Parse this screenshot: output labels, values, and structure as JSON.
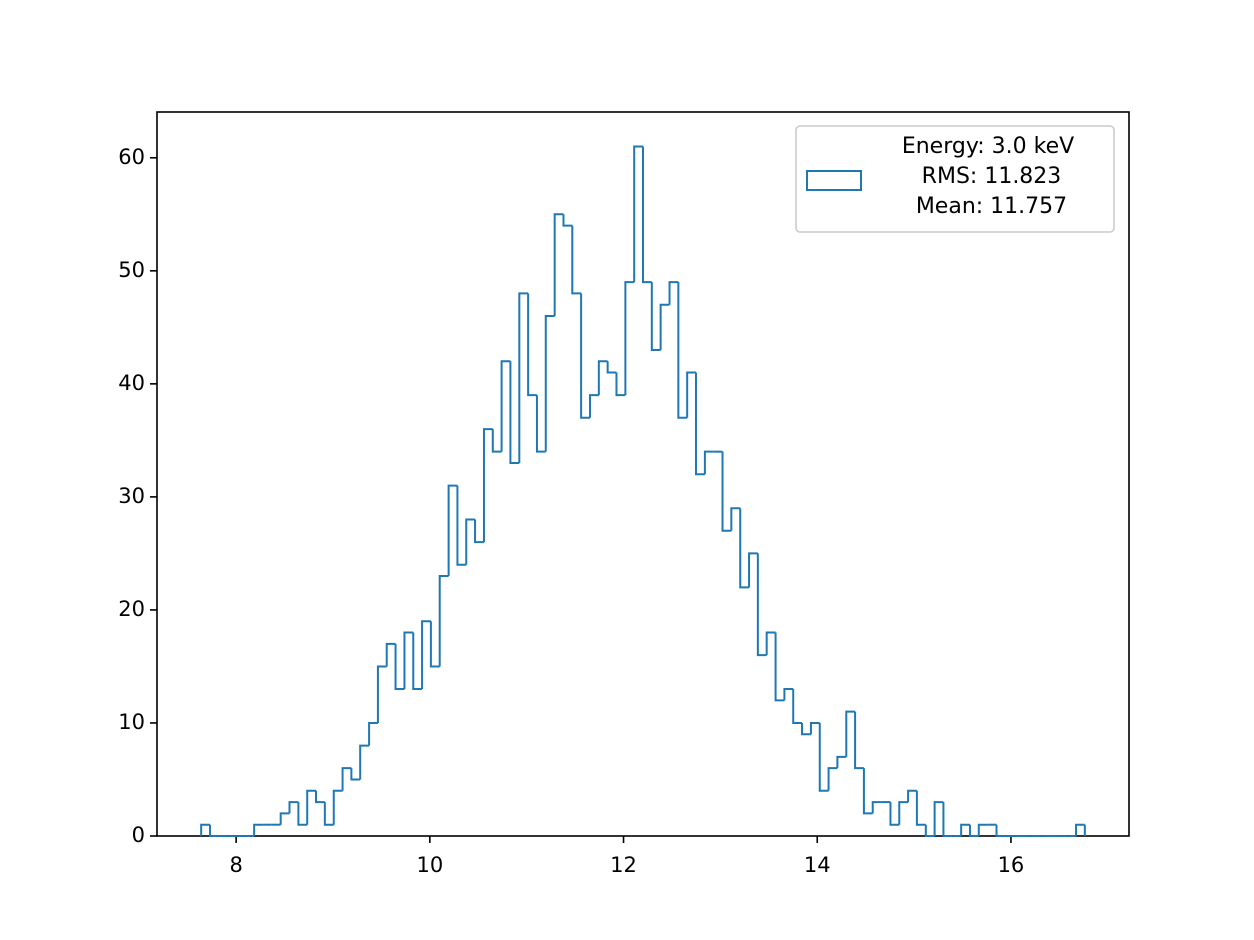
{
  "chart_data": {
    "type": "histogram",
    "histtype": "step",
    "bins": [
      7.639,
      7.73,
      7.821,
      7.913,
      8.004,
      8.095,
      8.186,
      8.278,
      8.369,
      8.46,
      8.551,
      8.643,
      8.734,
      8.825,
      8.916,
      9.008,
      9.099,
      9.19,
      9.281,
      9.373,
      9.464,
      9.555,
      9.646,
      9.738,
      9.829,
      9.92,
      10.011,
      10.102,
      10.194,
      10.285,
      10.376,
      10.467,
      10.559,
      10.65,
      10.741,
      10.832,
      10.924,
      11.015,
      11.106,
      11.197,
      11.289,
      11.38,
      11.471,
      11.562,
      11.654,
      11.745,
      11.836,
      11.927,
      12.019,
      12.11,
      12.201,
      12.292,
      12.383,
      12.475,
      12.566,
      12.657,
      12.748,
      12.84,
      12.931,
      13.022,
      13.113,
      13.205,
      13.296,
      13.387,
      13.478,
      13.57,
      13.661,
      13.752,
      13.843,
      13.935,
      14.026,
      14.117,
      14.208,
      14.3,
      14.391,
      14.482,
      14.573,
      14.665,
      14.756,
      14.847,
      14.938,
      15.029,
      15.121,
      15.212,
      15.303,
      15.394,
      15.486,
      15.577,
      15.668,
      15.759,
      15.851,
      15.942,
      16.033,
      16.124,
      16.216,
      16.307,
      16.398,
      16.489,
      16.581,
      16.672,
      16.763
    ],
    "series": [
      {
        "name": "Energy: 3.0 keV\n RMS: 11.823\n Mean: 11.757",
        "color": "#1f77b4",
        "values": [
          1,
          0,
          0,
          0,
          0,
          0,
          1,
          1,
          1,
          2,
          3,
          1,
          4,
          3,
          1,
          4,
          6,
          5,
          8,
          10,
          15,
          17,
          13,
          18,
          13,
          19,
          15,
          23,
          31,
          24,
          28,
          26,
          36,
          34,
          42,
          33,
          48,
          39,
          34,
          46,
          55,
          54,
          48,
          37,
          39,
          42,
          41,
          39,
          49,
          61,
          49,
          43,
          47,
          49,
          37,
          41,
          32,
          34,
          34,
          27,
          29,
          22,
          25,
          16,
          18,
          12,
          13,
          10,
          9,
          10,
          4,
          6,
          7,
          11,
          6,
          2,
          3,
          3,
          1,
          3,
          4,
          1,
          0,
          3,
          0,
          0,
          1,
          0,
          1,
          1,
          0,
          0,
          0,
          0,
          0,
          0,
          0,
          0,
          0,
          1
        ]
      }
    ],
    "xlim": [
      7.183,
      17.219
    ],
    "ylim": [
      0,
      64.05
    ],
    "xticks": [
      8,
      10,
      12,
      14,
      16
    ],
    "yticks": [
      0,
      10,
      20,
      30,
      40,
      50,
      60
    ],
    "grid": false,
    "legend": "upper right"
  }
}
